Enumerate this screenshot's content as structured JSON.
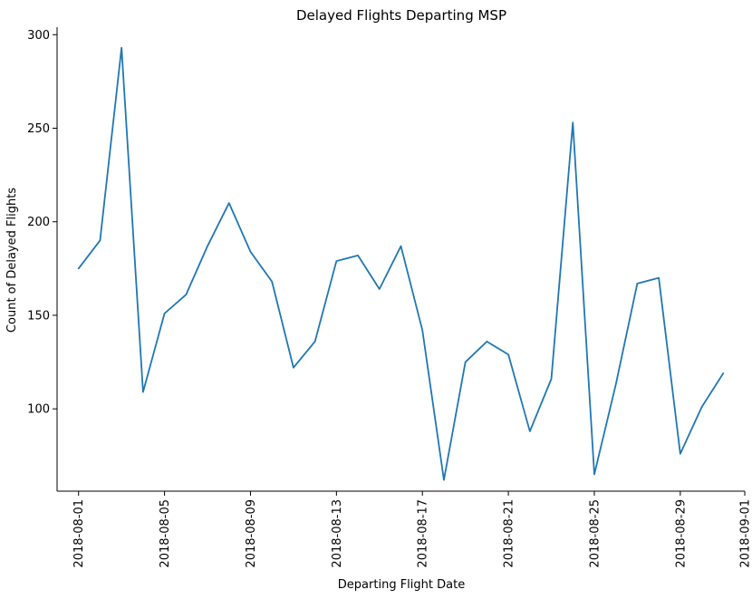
{
  "chart_data": {
    "type": "line",
    "title": "Delayed Flights Departing MSP",
    "xlabel": "Departing Flight Date",
    "ylabel": "Count of Delayed Flights",
    "grid": false,
    "line_color": "#1f77b4",
    "xlim": [
      "2018-07-31",
      "2018-09-01"
    ],
    "ylim": [
      56,
      304
    ],
    "x_ticks": [
      "2018-08-01",
      "2018-08-05",
      "2018-08-09",
      "2018-08-13",
      "2018-08-17",
      "2018-08-21",
      "2018-08-25",
      "2018-08-29",
      "2018-09-01"
    ],
    "y_ticks": [
      100,
      150,
      200,
      250,
      300
    ],
    "series": [
      {
        "x": [
          "2018-08-01",
          "2018-08-02",
          "2018-08-03",
          "2018-08-04",
          "2018-08-05",
          "2018-08-06",
          "2018-08-07",
          "2018-08-08",
          "2018-08-09",
          "2018-08-10",
          "2018-08-11",
          "2018-08-12",
          "2018-08-13",
          "2018-08-14",
          "2018-08-15",
          "2018-08-16",
          "2018-08-17",
          "2018-08-18",
          "2018-08-19",
          "2018-08-20",
          "2018-08-21",
          "2018-08-22",
          "2018-08-23",
          "2018-08-24",
          "2018-08-25",
          "2018-08-26",
          "2018-08-27",
          "2018-08-28",
          "2018-08-29",
          "2018-08-30",
          "2018-08-31"
        ],
        "values": [
          175,
          190,
          293,
          109,
          151,
          161,
          187,
          210,
          184,
          168,
          122,
          136,
          179,
          182,
          164,
          187,
          142,
          62,
          125,
          136,
          129,
          88,
          116,
          253,
          65,
          113,
          167,
          170,
          76,
          101,
          119
        ]
      }
    ]
  }
}
